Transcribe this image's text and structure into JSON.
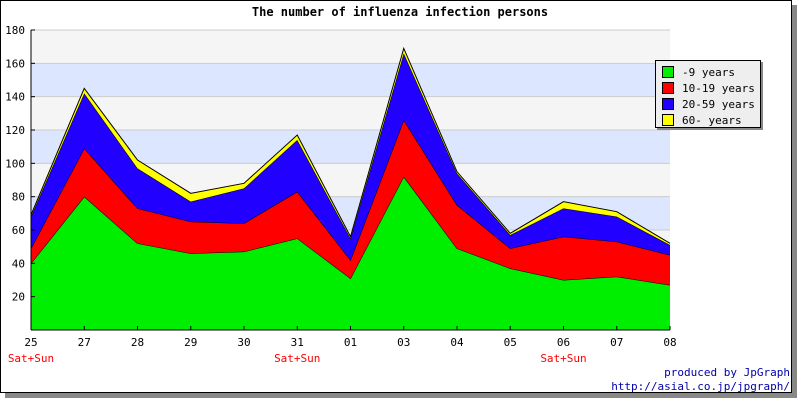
{
  "chart_data": {
    "type": "area",
    "stacked": true,
    "title": "The number of influenza infection persons",
    "categories": [
      "25",
      "27",
      "28",
      "29",
      "30",
      "31",
      "01",
      "03",
      "04",
      "05",
      "06",
      "07",
      "08"
    ],
    "weekend_labels": [
      "Sat+Sun",
      "",
      "",
      "",
      "",
      "Sat+Sun",
      "",
      "",
      "",
      "",
      "Sat+Sun",
      "",
      ""
    ],
    "ylim": [
      0,
      180
    ],
    "yticks": [
      20,
      40,
      60,
      80,
      100,
      120,
      140,
      160,
      180
    ],
    "grid": true,
    "legend_position": "right",
    "series": [
      {
        "name": "-9 years",
        "color": "#00ee00",
        "values": [
          40,
          80,
          52,
          46,
          47,
          55,
          31,
          92,
          49,
          37,
          30,
          32,
          27
        ]
      },
      {
        "name": "10-19 years",
        "color": "#ff0000",
        "values": [
          9,
          29,
          21,
          19,
          17,
          28,
          11,
          34,
          26,
          12,
          26,
          21,
          18
        ]
      },
      {
        "name": "20-59 years",
        "color": "#2200ff",
        "values": [
          19,
          33,
          24,
          12,
          21,
          31,
          13,
          40,
          19,
          8,
          17,
          15,
          6
        ]
      },
      {
        "name": "60- years",
        "color": "#ffff00",
        "values": [
          1,
          3,
          5,
          5,
          3,
          3,
          1,
          3,
          1,
          1,
          4,
          3,
          1
        ]
      }
    ]
  },
  "credit": {
    "line1": "produced by JpGraph",
    "line2": "http://asial.co.jp/jpgraph/"
  }
}
